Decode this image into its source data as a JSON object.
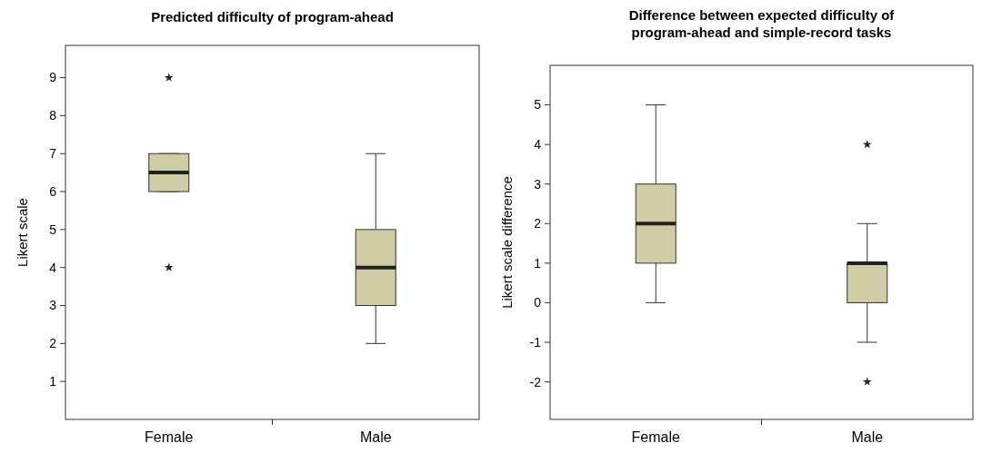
{
  "chart_data": [
    {
      "type": "box",
      "title": "Predicted difficulty of program-ahead",
      "ylabel": "Likert scale",
      "categories": [
        "Female",
        "Male"
      ],
      "color": "#cfcca6",
      "marker": "star",
      "ylim": [
        0,
        9.85
      ],
      "yticks": [
        1,
        2,
        3,
        4,
        5,
        6,
        7,
        8,
        9
      ],
      "boxes": [
        {
          "low": 6,
          "q1": 6,
          "median": 6.5,
          "q3": 7,
          "high": 7,
          "outliers": [
            9,
            4
          ]
        },
        {
          "low": 2,
          "q1": 3,
          "median": 4,
          "q3": 5,
          "high": 7
        }
      ]
    },
    {
      "type": "box",
      "title": "Difference between expected difficulty of\nprogram-ahead and simple-record tasks",
      "ylabel": "Likert scale difference",
      "categories": [
        "Female",
        "Male"
      ],
      "color": "#cfcca6",
      "marker": "star",
      "ylim": [
        -2.95,
        6
      ],
      "yticks": [
        -2,
        -1,
        0,
        1,
        2,
        3,
        4,
        5
      ],
      "boxes": [
        {
          "low": 0,
          "q1": 1,
          "median": 2,
          "q3": 3,
          "high": 5
        },
        {
          "low": -1,
          "q1": 0,
          "median": 1,
          "q3": 1,
          "high": 2,
          "outliers": [
            4,
            -2
          ]
        }
      ]
    }
  ]
}
